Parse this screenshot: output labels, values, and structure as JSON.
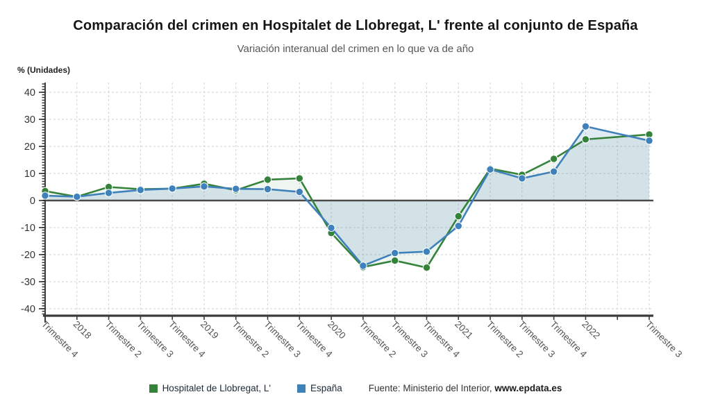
{
  "chart_data": {
    "type": "line",
    "title": "Comparación del crimen en Hospitalet de Llobregat, L' frente al conjunto de España",
    "subtitle": "Variación interanual del crimen en lo que va de año",
    "unit_label": "% (Unidades)",
    "categories": [
      "Trimestre 4",
      "2018",
      "Trimestre 2",
      "Trimestre 3",
      "Trimestre 4",
      "2019",
      "Trimestre 2",
      "Trimestre 3",
      "Trimestre 4",
      "2020",
      "Trimestre 2",
      "Trimestre 3",
      "Trimestre 4",
      "2021",
      "Trimestre 2",
      "Trimestre 3",
      "Trimestre 4",
      "2022",
      "",
      "Trimestre 3"
    ],
    "series": [
      {
        "name": "Hospitalet de Llobregat, L'",
        "color": "#35823B",
        "values": [
          3.5,
          1.4,
          5.0,
          4.2,
          4.4,
          6.2,
          3.8,
          7.7,
          8.2,
          -12.0,
          -24.6,
          -22.2,
          -24.8,
          -5.8,
          11.8,
          9.5,
          15.4,
          22.6,
          null,
          24.4
        ]
      },
      {
        "name": "España",
        "color": "#3F81BB",
        "values": [
          1.8,
          1.4,
          2.8,
          3.9,
          4.4,
          5.2,
          4.3,
          4.2,
          3.2,
          -10.1,
          -24.1,
          -19.4,
          -18.9,
          -9.4,
          11.5,
          8.2,
          10.7,
          27.4,
          null,
          22.1
        ]
      }
    ],
    "yticks": [
      40,
      30,
      20,
      10,
      0,
      -10,
      -20,
      -30,
      -40
    ],
    "ylim": [
      -40,
      40
    ],
    "grid": true,
    "legend_position": "bottom",
    "source": {
      "prefix": "Fuente: Ministerio del Interior, ",
      "bold": "www.epdata.es"
    }
  },
  "colors": {
    "gridline": "#d2d2d2",
    "zero_line": "#4a4a4a",
    "axis": "#3a3a3a",
    "y_label": "#333333",
    "x_label": "#555555"
  }
}
